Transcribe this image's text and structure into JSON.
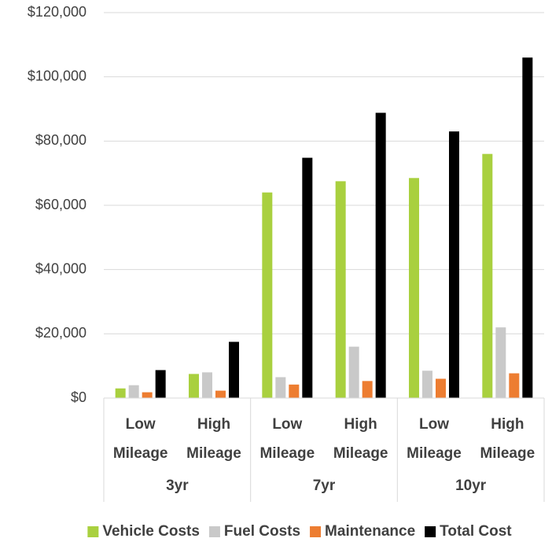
{
  "chart_data": {
    "type": "bar",
    "groups": [
      {
        "name": "3yr",
        "categories": [
          "Low Mileage",
          "High Mileage"
        ]
      },
      {
        "name": "7yr",
        "categories": [
          "Low Mileage",
          "High Mileage"
        ]
      },
      {
        "name": "10yr",
        "categories": [
          "Low Mileage",
          "High Mileage"
        ]
      }
    ],
    "series": [
      {
        "name": "Vehicle Costs",
        "color": "#a9d03f",
        "values": [
          3000,
          7500,
          64000,
          67500,
          68500,
          76000
        ]
      },
      {
        "name": "Fuel Costs",
        "color": "#c9c9c9",
        "values": [
          4000,
          8000,
          6500,
          16000,
          8500,
          22000
        ]
      },
      {
        "name": "Maintenance",
        "color": "#ed7d31",
        "values": [
          1800,
          2300,
          4200,
          5300,
          6000,
          7700
        ]
      },
      {
        "name": "Total Cost",
        "color": "#000000",
        "values": [
          8700,
          17500,
          74800,
          88800,
          83000,
          106000
        ]
      }
    ],
    "ylim": [
      0,
      120000
    ],
    "yticks": [
      {
        "value": 0,
        "label": "$0"
      },
      {
        "value": 20000,
        "label": "$20,000"
      },
      {
        "value": 40000,
        "label": "$40,000"
      },
      {
        "value": 60000,
        "label": "$60,000"
      },
      {
        "value": 80000,
        "label": "$80,000"
      },
      {
        "value": 100000,
        "label": "$100,000"
      },
      {
        "value": 120000,
        "label": "$120,000"
      }
    ],
    "grid": true,
    "legend": "bottom"
  }
}
